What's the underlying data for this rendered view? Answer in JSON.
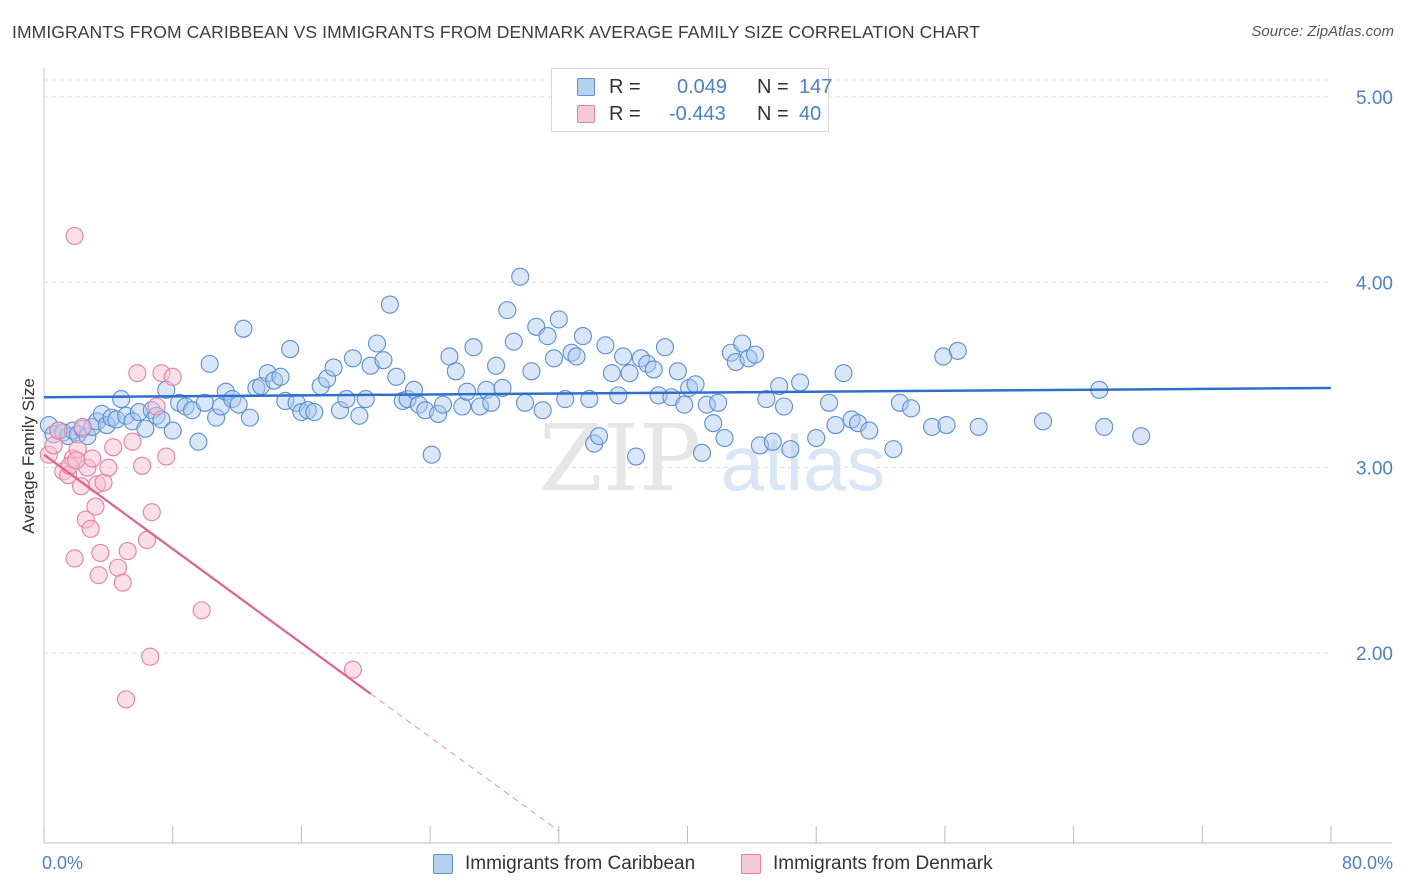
{
  "header": {
    "title": "IMMIGRANTS FROM CARIBBEAN VS IMMIGRANTS FROM DENMARK AVERAGE FAMILY SIZE CORRELATION CHART",
    "source_prefix": "Source: ",
    "source_site": "ZipAtlas.com"
  },
  "watermark": {
    "zip": "ZIP",
    "atlas": "atlas"
  },
  "legend": {
    "series": [
      {
        "r_label": "R =",
        "r_value": "0.049",
        "n_label": "N =",
        "n_value": "147"
      },
      {
        "r_label": "R =",
        "r_value": "-0.443",
        "n_label": "N =",
        "n_value": "40"
      }
    ]
  },
  "chart_data": {
    "type": "scatter",
    "title": "IMMIGRANTS FROM CARIBBEAN VS IMMIGRANTS FROM DENMARK AVERAGE FAMILY SIZE CORRELATION CHART",
    "xlabel": "",
    "ylabel": "Average Family Size",
    "xlim": [
      0,
      80
    ],
    "ylim": [
      1.1,
      5.1
    ],
    "x_tick_labels": [
      {
        "value": 0,
        "label": "0.0%"
      },
      {
        "value": 80,
        "label": "80.0%"
      }
    ],
    "x_minor_ticks": [
      0,
      8,
      16,
      24,
      32,
      40,
      48,
      56,
      64,
      72,
      80
    ],
    "y_ticks": [
      {
        "value": 2.0,
        "label": "2.00"
      },
      {
        "value": 3.0,
        "label": "3.00"
      },
      {
        "value": 4.0,
        "label": "4.00"
      },
      {
        "value": 5.0,
        "label": "5.00"
      }
    ],
    "grid": true,
    "colors": {
      "caribbean_fill": "#a9c8ee",
      "caribbean_stroke": "#5b8fd6",
      "caribbean_line": "#2f6fcc",
      "denmark_fill": "#f6bfd0",
      "denmark_stroke": "#e87fa3",
      "denmark_line": "#e0608e"
    },
    "series": [
      {
        "name": "Immigrants from Caribbean",
        "trend": {
          "x1": 0,
          "y1": 3.38,
          "x2": 80,
          "y2": 3.43
        },
        "points": [
          [
            0.3,
            3.23
          ],
          [
            0.6,
            3.18
          ],
          [
            0.9,
            3.2
          ],
          [
            1.2,
            3.19
          ],
          [
            1.5,
            3.17
          ],
          [
            1.8,
            3.2
          ],
          [
            2.1,
            3.18
          ],
          [
            2.4,
            3.21
          ],
          [
            2.7,
            3.17
          ],
          [
            3.0,
            3.22
          ],
          [
            3.3,
            3.25
          ],
          [
            3.6,
            3.29
          ],
          [
            3.9,
            3.23
          ],
          [
            4.2,
            3.27
          ],
          [
            4.5,
            3.26
          ],
          [
            4.8,
            3.37
          ],
          [
            5.1,
            3.28
          ],
          [
            5.5,
            3.25
          ],
          [
            5.9,
            3.3
          ],
          [
            6.3,
            3.21
          ],
          [
            6.7,
            3.31
          ],
          [
            7.0,
            3.28
          ],
          [
            7.3,
            3.26
          ],
          [
            7.6,
            3.42
          ],
          [
            8.0,
            3.2
          ],
          [
            8.4,
            3.35
          ],
          [
            8.8,
            3.33
          ],
          [
            9.2,
            3.31
          ],
          [
            9.6,
            3.14
          ],
          [
            10.0,
            3.35
          ],
          [
            10.3,
            3.56
          ],
          [
            10.7,
            3.27
          ],
          [
            11.0,
            3.33
          ],
          [
            11.3,
            3.41
          ],
          [
            11.7,
            3.37
          ],
          [
            12.1,
            3.34
          ],
          [
            12.4,
            3.75
          ],
          [
            12.8,
            3.27
          ],
          [
            13.2,
            3.43
          ],
          [
            13.5,
            3.44
          ],
          [
            13.9,
            3.51
          ],
          [
            14.3,
            3.47
          ],
          [
            14.7,
            3.49
          ],
          [
            15.0,
            3.36
          ],
          [
            15.3,
            3.64
          ],
          [
            15.7,
            3.35
          ],
          [
            16.0,
            3.3
          ],
          [
            16.4,
            3.31
          ],
          [
            16.8,
            3.3
          ],
          [
            17.2,
            3.44
          ],
          [
            17.6,
            3.48
          ],
          [
            18.0,
            3.54
          ],
          [
            18.4,
            3.31
          ],
          [
            18.8,
            3.37
          ],
          [
            19.2,
            3.59
          ],
          [
            19.6,
            3.28
          ],
          [
            20.0,
            3.37
          ],
          [
            20.3,
            3.55
          ],
          [
            20.7,
            3.67
          ],
          [
            21.1,
            3.58
          ],
          [
            21.5,
            3.88
          ],
          [
            21.9,
            3.49
          ],
          [
            22.3,
            3.36
          ],
          [
            22.6,
            3.37
          ],
          [
            23.0,
            3.42
          ],
          [
            23.3,
            3.34
          ],
          [
            23.7,
            3.31
          ],
          [
            24.1,
            3.07
          ],
          [
            24.5,
            3.29
          ],
          [
            24.8,
            3.34
          ],
          [
            25.2,
            3.6
          ],
          [
            25.6,
            3.52
          ],
          [
            26.0,
            3.33
          ],
          [
            26.3,
            3.41
          ],
          [
            26.7,
            3.65
          ],
          [
            27.1,
            3.33
          ],
          [
            27.5,
            3.42
          ],
          [
            27.8,
            3.35
          ],
          [
            28.1,
            3.55
          ],
          [
            28.5,
            3.43
          ],
          [
            28.8,
            3.85
          ],
          [
            29.2,
            3.68
          ],
          [
            29.6,
            4.03
          ],
          [
            29.9,
            3.35
          ],
          [
            30.3,
            3.52
          ],
          [
            30.6,
            3.76
          ],
          [
            31.0,
            3.31
          ],
          [
            31.3,
            3.71
          ],
          [
            31.7,
            3.59
          ],
          [
            32.0,
            3.8
          ],
          [
            32.4,
            3.37
          ],
          [
            32.8,
            3.62
          ],
          [
            33.1,
            3.6
          ],
          [
            33.5,
            3.71
          ],
          [
            33.9,
            3.37
          ],
          [
            34.2,
            3.13
          ],
          [
            34.5,
            3.17
          ],
          [
            34.9,
            3.66
          ],
          [
            35.3,
            3.51
          ],
          [
            35.7,
            3.39
          ],
          [
            36.0,
            3.6
          ],
          [
            36.4,
            3.51
          ],
          [
            36.8,
            3.06
          ],
          [
            37.1,
            3.59
          ],
          [
            37.5,
            3.56
          ],
          [
            37.9,
            3.53
          ],
          [
            38.2,
            3.39
          ],
          [
            38.6,
            3.65
          ],
          [
            39.0,
            3.38
          ],
          [
            39.4,
            3.52
          ],
          [
            39.8,
            3.34
          ],
          [
            40.1,
            3.43
          ],
          [
            40.5,
            3.45
          ],
          [
            40.9,
            3.08
          ],
          [
            41.2,
            3.34
          ],
          [
            41.6,
            3.24
          ],
          [
            41.9,
            3.35
          ],
          [
            42.3,
            3.16
          ],
          [
            42.7,
            3.62
          ],
          [
            43.0,
            3.57
          ],
          [
            43.4,
            3.67
          ],
          [
            43.8,
            3.59
          ],
          [
            44.2,
            3.61
          ],
          [
            44.5,
            3.12
          ],
          [
            44.9,
            3.37
          ],
          [
            45.3,
            3.14
          ],
          [
            45.7,
            3.44
          ],
          [
            46.0,
            3.33
          ],
          [
            46.4,
            3.1
          ],
          [
            47.0,
            3.46
          ],
          [
            48.0,
            3.16
          ],
          [
            48.8,
            3.35
          ],
          [
            49.2,
            3.23
          ],
          [
            49.7,
            3.51
          ],
          [
            50.2,
            3.26
          ],
          [
            50.6,
            3.24
          ],
          [
            51.3,
            3.2
          ],
          [
            52.8,
            3.1
          ],
          [
            53.2,
            3.35
          ],
          [
            53.9,
            3.32
          ],
          [
            55.2,
            3.22
          ],
          [
            55.9,
            3.6
          ],
          [
            56.1,
            3.23
          ],
          [
            56.8,
            3.63
          ],
          [
            58.1,
            3.22
          ],
          [
            62.1,
            3.25
          ],
          [
            65.6,
            3.42
          ],
          [
            65.9,
            3.22
          ],
          [
            68.2,
            3.17
          ]
        ]
      },
      {
        "name": "Immigrants from Denmark",
        "trend": {
          "x1": 0,
          "y1": 3.07,
          "x2": 20.3,
          "y2": 1.78,
          "dash_x2": 32,
          "dash_y2": 1.04
        },
        "points": [
          [
            0.3,
            3.07
          ],
          [
            0.6,
            3.12
          ],
          [
            0.9,
            3.2
          ],
          [
            1.2,
            2.98
          ],
          [
            1.5,
            2.96
          ],
          [
            1.8,
            3.05
          ],
          [
            2.1,
            3.1
          ],
          [
            2.4,
            3.22
          ],
          [
            2.7,
            3.0
          ],
          [
            3.0,
            3.05
          ],
          [
            3.3,
            2.91
          ],
          [
            1.6,
            3.01
          ],
          [
            1.9,
            2.51
          ],
          [
            2.0,
            3.04
          ],
          [
            2.3,
            2.9
          ],
          [
            2.6,
            2.72
          ],
          [
            2.9,
            2.67
          ],
          [
            3.2,
            2.79
          ],
          [
            3.5,
            2.54
          ],
          [
            3.4,
            2.42
          ],
          [
            3.7,
            2.92
          ],
          [
            4.0,
            3.0
          ],
          [
            4.3,
            3.11
          ],
          [
            4.6,
            2.46
          ],
          [
            4.9,
            2.38
          ],
          [
            5.2,
            2.55
          ],
          [
            5.5,
            3.14
          ],
          [
            5.8,
            3.51
          ],
          [
            6.1,
            3.01
          ],
          [
            6.4,
            2.61
          ],
          [
            6.7,
            2.76
          ],
          [
            7.0,
            3.33
          ],
          [
            7.3,
            3.51
          ],
          [
            7.6,
            3.06
          ],
          [
            8.0,
            3.49
          ],
          [
            9.8,
            2.23
          ],
          [
            6.6,
            1.98
          ],
          [
            5.1,
            1.75
          ],
          [
            19.2,
            1.91
          ],
          [
            1.9,
            4.25
          ]
        ]
      }
    ]
  },
  "bottom_legend": {
    "items": [
      {
        "label": "Immigrants from Caribbean"
      },
      {
        "label": "Immigrants from Denmark"
      }
    ]
  }
}
